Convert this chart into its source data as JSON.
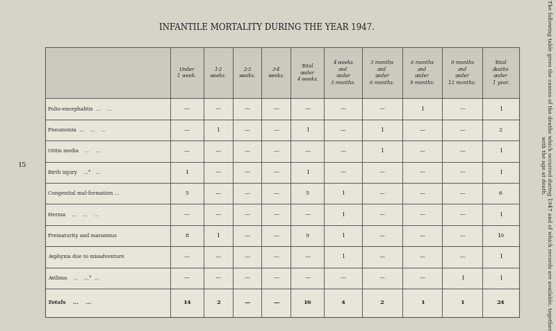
{
  "title": "INFANTILE MORTALITY DURING THE YEAR 1947.",
  "side_text": "The following table gives the causes of the deaths which occurred during 1947 and of which records are available, together with the age at death.",
  "page_number": "15",
  "col_headers": [
    [
      "Under\n1 week.",
      "1-2\nweeks.",
      "2-3\nweeks.",
      "3-4\nweeks.",
      "Total\nunder\n4 weeks.",
      "4 weeks\nand\nunder\n3 months.",
      "3 months\nand\nunder\n6 months.",
      "6 months\nand\nunder\n9 months.",
      "9 months\nand\nunder\n12 months.",
      "Total\ndeaths\nunder\n1 year."
    ]
  ],
  "rows": [
    {
      "label": "Polio-encephalitis  ...    ...",
      "values": [
        "—",
        "—",
        "—",
        "—",
        "—",
        "—",
        "—",
        "1",
        "—",
        "1"
      ]
    },
    {
      "label": "Pneumonia  ...    ...    ...",
      "values": [
        "—",
        "1",
        "—",
        "—",
        "1",
        "—",
        "1",
        "—",
        "—",
        "2"
      ]
    },
    {
      "label": "Otitis media    ...    ...",
      "values": [
        "—",
        "—",
        "—",
        "—",
        "—",
        "—",
        "1",
        "—",
        "—",
        "1"
      ]
    },
    {
      "label": "Birth injury    ...°   ...",
      "values": [
        "1",
        "—",
        "—",
        "—",
        "1",
        "—",
        "—",
        "—",
        "—",
        "1"
      ]
    },
    {
      "label": "Congenital mal-formation ...",
      "values": [
        "5",
        "—",
        "—",
        "—",
        "5",
        "1",
        "—",
        "—",
        "—",
        "6"
      ]
    },
    {
      "label": "Hernia    ...    ...    ...",
      "values": [
        "—",
        "—",
        "—",
        "—",
        "—",
        "1",
        "—",
        "—",
        "—",
        "1"
      ]
    },
    {
      "label": "Prematurity and marasmus",
      "values": [
        "8",
        "1",
        "—",
        "—",
        "9",
        "1",
        "—",
        "—",
        "—",
        "10"
      ]
    },
    {
      "label": "Asphyxia due to misadventure",
      "values": [
        "—",
        "—",
        "—",
        "—",
        "—",
        "1",
        "—",
        "—",
        "—",
        "1"
      ]
    },
    {
      "label": "Asthma    ...    ...°  ...",
      "values": [
        "—",
        "—",
        "—",
        "—",
        "—",
        "—",
        "—",
        "—",
        "1",
        "1"
      ]
    }
  ],
  "totals_label": "Totals    ...    ...",
  "totals": [
    "14",
    "2",
    "—",
    "—",
    "16",
    "4",
    "2",
    "1",
    "1",
    "24"
  ],
  "bg_color": "#d6d3c8",
  "table_bg": "#e8e5db",
  "header_bg": "#ccc9be",
  "line_color": "#555555",
  "text_color": "#222222"
}
